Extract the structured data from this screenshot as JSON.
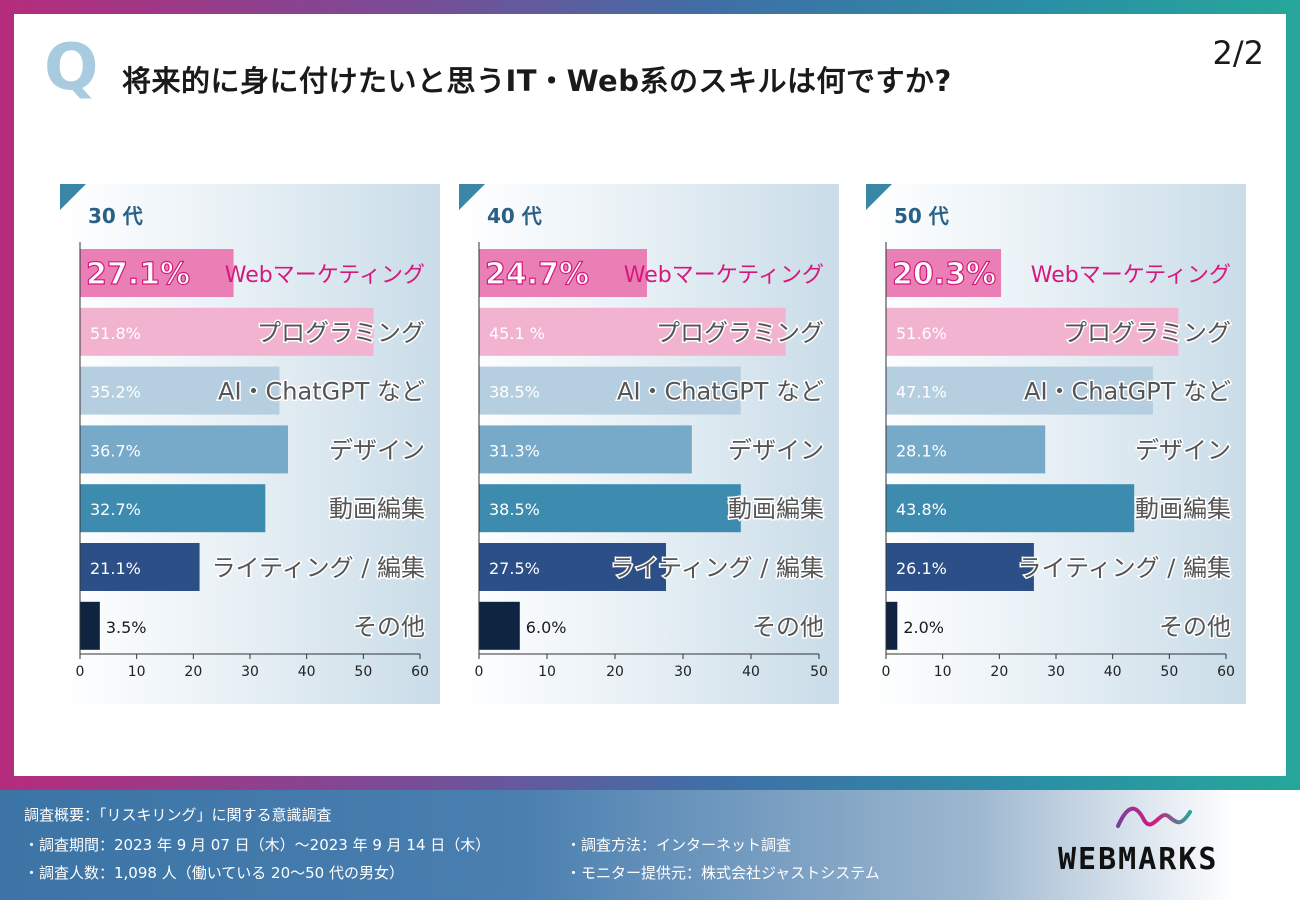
{
  "header": {
    "q_letter": "Q",
    "title": "将来的に身に付けたいと思うIT・Web系のスキルは何ですか?",
    "page": "2/2"
  },
  "chart_data": [
    {
      "type": "bar",
      "panel_label": "30 代",
      "categories": [
        "Webマーケティング",
        "プログラミング",
        "AI・ChatGPT など",
        "デザイン",
        "動画編集",
        "ライティング / 編集",
        "その他"
      ],
      "values": [
        27.1,
        51.8,
        35.2,
        36.7,
        32.7,
        21.1,
        3.5
      ],
      "value_labels": [
        "27.1%",
        "51.8%",
        "35.2%",
        "36.7%",
        "32.7%",
        "21.1%",
        "3.5%"
      ],
      "xlim": [
        0,
        60
      ],
      "ticks": [
        "0",
        "10",
        "20",
        "30",
        "40",
        "50",
        "60"
      ]
    },
    {
      "type": "bar",
      "panel_label": "40 代",
      "categories": [
        "Webマーケティング",
        "プログラミング",
        "AI・ChatGPT など",
        "デザイン",
        "動画編集",
        "ライティング / 編集",
        "その他"
      ],
      "values": [
        24.7,
        45.1,
        38.5,
        31.3,
        38.5,
        27.5,
        6.0
      ],
      "value_labels": [
        "24.7%",
        "45.1 %",
        "38.5%",
        "31.3%",
        "38.5%",
        "27.5%",
        "6.0%"
      ],
      "xlim": [
        0,
        50
      ],
      "ticks": [
        "0",
        "10",
        "20",
        "30",
        "40",
        "50"
      ]
    },
    {
      "type": "bar",
      "panel_label": "50 代",
      "categories": [
        "Webマーケティング",
        "プログラミング",
        "AI・ChatGPT など",
        "デザイン",
        "動画編集",
        "ライティング / 編集",
        "その他"
      ],
      "values": [
        20.3,
        51.6,
        47.1,
        28.1,
        43.8,
        26.1,
        2.0
      ],
      "value_labels": [
        "20.3%",
        "51.6%",
        "47.1%",
        "28.1%",
        "43.8%",
        "26.1%",
        "2.0%"
      ],
      "xlim": [
        0,
        60
      ],
      "ticks": [
        "0",
        "10",
        "20",
        "30",
        "40",
        "50",
        "60"
      ]
    }
  ],
  "bar_colors": [
    "#e97fb4",
    "#f2b3d0",
    "#b5cfe0",
    "#76aac8",
    "#3d8cb0",
    "#2b4f86",
    "#0f2440"
  ],
  "highlight_color": "#d6187e",
  "footer": {
    "line1": "調査概要：「リスキリング」に関する意識調査",
    "line2": "・調査期間：2023 年 9 月 07 日（木）〜2023 年 9 月 14 日（木）",
    "line3": "・調査人数：1,098 人（働いている 20〜50 代の男女）",
    "line4": "・調査方法：インターネット調査",
    "line5": "・モニター提供元：株式会社ジャストシステム"
  },
  "logo": {
    "text": "WEBMARKS"
  }
}
